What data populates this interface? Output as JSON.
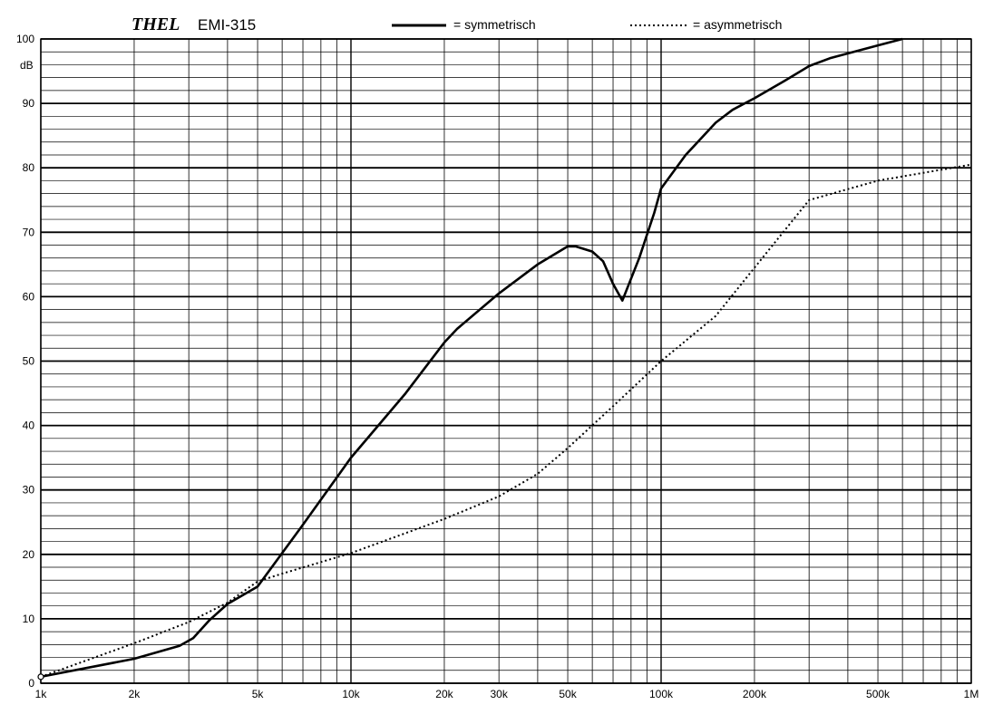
{
  "chart_data": {
    "type": "line",
    "brand": "THEL",
    "model": "EMI-315",
    "x_scale": "log",
    "xlim": [
      1000,
      1000000
    ],
    "ylim": [
      0,
      100
    ],
    "ylabel": "dB",
    "grid": true,
    "legend_position": "top",
    "x_ticks": [
      {
        "value": 1000,
        "label": "1k"
      },
      {
        "value": 2000,
        "label": "2k"
      },
      {
        "value": 5000,
        "label": "5k"
      },
      {
        "value": 10000,
        "label": "10k"
      },
      {
        "value": 20000,
        "label": "20k"
      },
      {
        "value": 30000,
        "label": "30k"
      },
      {
        "value": 50000,
        "label": "50k"
      },
      {
        "value": 100000,
        "label": "100k"
      },
      {
        "value": 200000,
        "label": "200k"
      },
      {
        "value": 500000,
        "label": "500k"
      },
      {
        "value": 1000000,
        "label": "1M"
      }
    ],
    "y_ticks": [
      {
        "value": 0,
        "label": "0"
      },
      {
        "value": 10,
        "label": "10"
      },
      {
        "value": 20,
        "label": "20"
      },
      {
        "value": 30,
        "label": "30"
      },
      {
        "value": 40,
        "label": "40"
      },
      {
        "value": 50,
        "label": "50"
      },
      {
        "value": 60,
        "label": "60"
      },
      {
        "value": 70,
        "label": "70"
      },
      {
        "value": 80,
        "label": "80"
      },
      {
        "value": 90,
        "label": "90"
      },
      {
        "value": 100,
        "label": "100"
      }
    ],
    "series": [
      {
        "name": "= symmetrisch",
        "style": "solid",
        "color": "#000000",
        "points": [
          [
            1000,
            1
          ],
          [
            2000,
            3.8
          ],
          [
            2800,
            5.8
          ],
          [
            3100,
            7
          ],
          [
            3500,
            9.8
          ],
          [
            4000,
            12.3
          ],
          [
            5000,
            15
          ],
          [
            7000,
            24.6
          ],
          [
            10000,
            35
          ],
          [
            15000,
            45
          ],
          [
            20000,
            52.9
          ],
          [
            22000,
            55
          ],
          [
            30000,
            60.5
          ],
          [
            40000,
            65
          ],
          [
            50000,
            67.8
          ],
          [
            53000,
            67.8
          ],
          [
            60000,
            67
          ],
          [
            65000,
            65.5
          ],
          [
            70000,
            62
          ],
          [
            75000,
            59.4
          ],
          [
            85000,
            66
          ],
          [
            95000,
            73
          ],
          [
            100000,
            76.8
          ],
          [
            120000,
            82
          ],
          [
            150000,
            87
          ],
          [
            170000,
            89
          ],
          [
            200000,
            90.8
          ],
          [
            250000,
            93.5
          ],
          [
            300000,
            95.8
          ],
          [
            350000,
            97
          ],
          [
            500000,
            99
          ],
          [
            600000,
            100
          ]
        ]
      },
      {
        "name": "= asymmetrisch",
        "style": "dotted",
        "color": "#000000",
        "points": [
          [
            1000,
            1
          ],
          [
            2000,
            6.2
          ],
          [
            3000,
            9.5
          ],
          [
            4000,
            12.5
          ],
          [
            5000,
            15.8
          ],
          [
            6000,
            17
          ],
          [
            10000,
            20.2
          ],
          [
            20000,
            25.5
          ],
          [
            30000,
            29
          ],
          [
            40000,
            32.5
          ],
          [
            50000,
            36.5
          ],
          [
            70000,
            43
          ],
          [
            100000,
            50
          ],
          [
            150000,
            57
          ],
          [
            200000,
            64.5
          ],
          [
            300000,
            75
          ],
          [
            500000,
            78
          ],
          [
            1000000,
            80.5
          ]
        ]
      }
    ]
  }
}
